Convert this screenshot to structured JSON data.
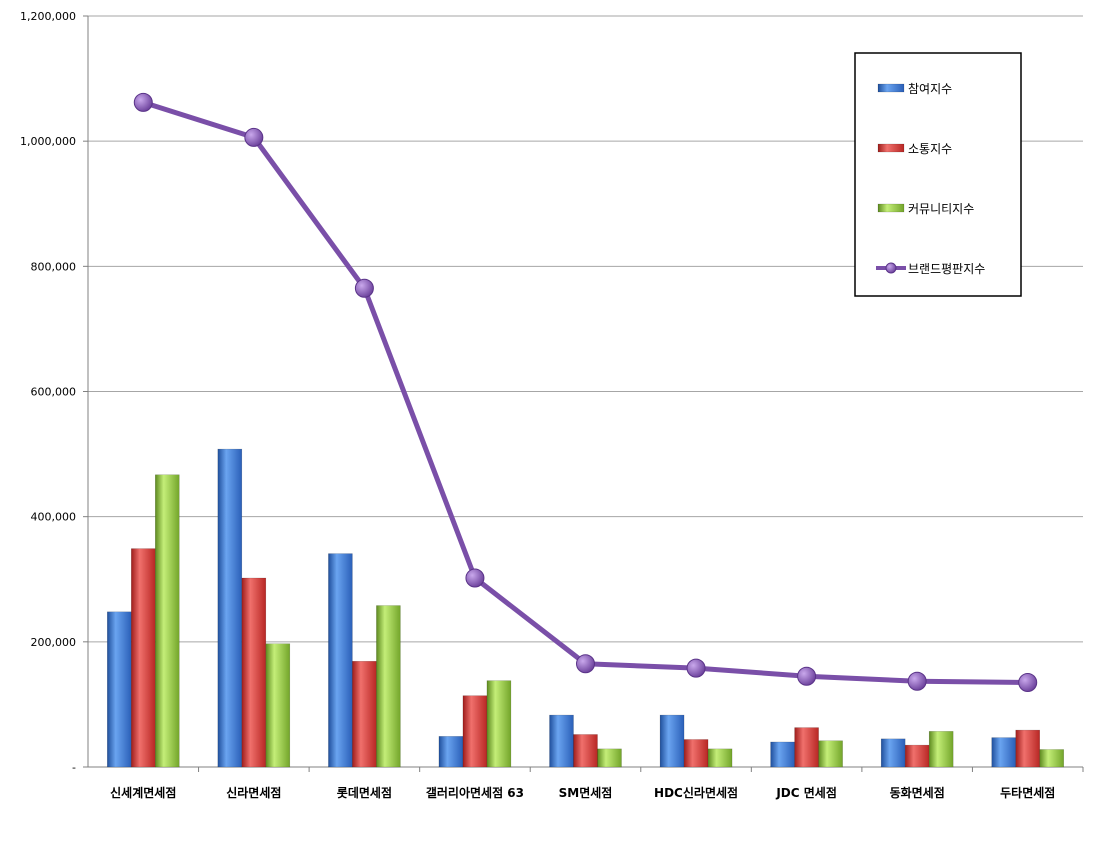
{
  "chart_data": {
    "type": "bar",
    "categories": [
      "신세계면세점",
      "신라면세점",
      "롯데면세점",
      "갤러리아면세점 63",
      "SM면세점",
      "HDC신라면세점",
      "JDC 면세점",
      "동화면세점",
      "두타면세점"
    ],
    "series": [
      {
        "name": "참여지수",
        "type": "bar",
        "color": "#3a78d4",
        "values": [
          248000,
          508000,
          341000,
          49000,
          83000,
          83000,
          40000,
          45000,
          47000
        ]
      },
      {
        "name": "소통지수",
        "type": "bar",
        "color": "#d83a36",
        "values": [
          349000,
          302000,
          169000,
          114000,
          52000,
          44000,
          63000,
          35000,
          59000
        ]
      },
      {
        "name": "커뮤니티지수",
        "type": "bar",
        "color": "#8cc43a",
        "values": [
          467000,
          197000,
          258000,
          138000,
          29000,
          29000,
          42000,
          57000,
          28000
        ]
      },
      {
        "name": "브랜드평판지수",
        "type": "line",
        "color": "#7a4fa8",
        "values": [
          1062000,
          1006000,
          765000,
          302000,
          165000,
          158000,
          145000,
          137000,
          135000
        ]
      }
    ],
    "ylim": [
      0,
      1200000
    ],
    "yticks": [
      0,
      200000,
      400000,
      600000,
      800000,
      1000000,
      1200000
    ],
    "ytick_labels": [
      "-",
      "200,000",
      "400,000",
      "600,000",
      "800,000",
      "1,000,000",
      "1,200,000"
    ],
    "grid": true,
    "legend": "top-right"
  }
}
